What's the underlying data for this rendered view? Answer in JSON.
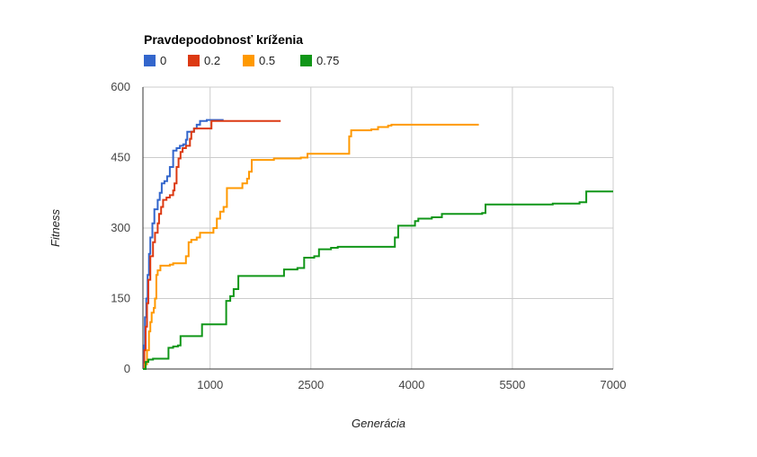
{
  "chart_data": {
    "type": "line",
    "title": "Pravdepodobnosť kríženia",
    "xlabel": "Generácia",
    "ylabel": "Fitness",
    "xlim": [
      0,
      7000
    ],
    "ylim": [
      0,
      600
    ],
    "x_ticks": [
      1000,
      2500,
      4000,
      5500,
      7000
    ],
    "y_ticks": [
      0,
      150,
      300,
      450,
      600
    ],
    "grid": true,
    "legend_position": "top-left",
    "step": true,
    "series": [
      {
        "name": "0",
        "color": "#3366cc",
        "points": [
          [
            0,
            0
          ],
          [
            15,
            50
          ],
          [
            30,
            110
          ],
          [
            50,
            150
          ],
          [
            70,
            200
          ],
          [
            90,
            245
          ],
          [
            110,
            280
          ],
          [
            140,
            310
          ],
          [
            170,
            340
          ],
          [
            220,
            360
          ],
          [
            250,
            375
          ],
          [
            280,
            395
          ],
          [
            320,
            400
          ],
          [
            360,
            410
          ],
          [
            400,
            430
          ],
          [
            450,
            465
          ],
          [
            500,
            470
          ],
          [
            550,
            475
          ],
          [
            600,
            478
          ],
          [
            640,
            488
          ],
          [
            660,
            505
          ],
          [
            760,
            512
          ],
          [
            800,
            520
          ],
          [
            850,
            528
          ],
          [
            950,
            530
          ],
          [
            1100,
            530
          ],
          [
            1200,
            530
          ]
        ]
      },
      {
        "name": "0.2",
        "color": "#dc3912",
        "points": [
          [
            0,
            0
          ],
          [
            20,
            40
          ],
          [
            40,
            90
          ],
          [
            60,
            140
          ],
          [
            80,
            190
          ],
          [
            110,
            240
          ],
          [
            150,
            270
          ],
          [
            180,
            290
          ],
          [
            220,
            310
          ],
          [
            240,
            330
          ],
          [
            270,
            345
          ],
          [
            300,
            360
          ],
          [
            350,
            365
          ],
          [
            400,
            370
          ],
          [
            450,
            380
          ],
          [
            470,
            395
          ],
          [
            500,
            430
          ],
          [
            530,
            448
          ],
          [
            560,
            462
          ],
          [
            590,
            470
          ],
          [
            640,
            475
          ],
          [
            700,
            490
          ],
          [
            720,
            505
          ],
          [
            760,
            512
          ],
          [
            1000,
            512
          ],
          [
            1020,
            528
          ],
          [
            1100,
            528
          ],
          [
            2050,
            528
          ]
        ]
      },
      {
        "name": "0.5",
        "color": "#ff9900",
        "points": [
          [
            0,
            0
          ],
          [
            30,
            10
          ],
          [
            60,
            40
          ],
          [
            90,
            80
          ],
          [
            110,
            100
          ],
          [
            130,
            120
          ],
          [
            160,
            130
          ],
          [
            180,
            150
          ],
          [
            200,
            200
          ],
          [
            220,
            210
          ],
          [
            260,
            220
          ],
          [
            350,
            220
          ],
          [
            400,
            222
          ],
          [
            450,
            225
          ],
          [
            600,
            225
          ],
          [
            640,
            240
          ],
          [
            680,
            270
          ],
          [
            720,
            275
          ],
          [
            800,
            280
          ],
          [
            850,
            290
          ],
          [
            1000,
            290
          ],
          [
            1050,
            300
          ],
          [
            1100,
            320
          ],
          [
            1150,
            335
          ],
          [
            1200,
            345
          ],
          [
            1250,
            385
          ],
          [
            1450,
            385
          ],
          [
            1480,
            395
          ],
          [
            1550,
            405
          ],
          [
            1580,
            420
          ],
          [
            1620,
            445
          ],
          [
            1800,
            445
          ],
          [
            1950,
            448
          ],
          [
            2350,
            450
          ],
          [
            2450,
            458
          ],
          [
            3050,
            458
          ],
          [
            3070,
            495
          ],
          [
            3100,
            508
          ],
          [
            3400,
            510
          ],
          [
            3500,
            515
          ],
          [
            3650,
            518
          ],
          [
            3700,
            520
          ],
          [
            4000,
            520
          ],
          [
            5000,
            520
          ]
        ]
      },
      {
        "name": "0.75",
        "color": "#109618",
        "points": [
          [
            0,
            0
          ],
          [
            40,
            15
          ],
          [
            80,
            20
          ],
          [
            150,
            22
          ],
          [
            300,
            22
          ],
          [
            380,
            45
          ],
          [
            450,
            48
          ],
          [
            520,
            50
          ],
          [
            560,
            70
          ],
          [
            850,
            70
          ],
          [
            880,
            95
          ],
          [
            1200,
            95
          ],
          [
            1240,
            145
          ],
          [
            1300,
            155
          ],
          [
            1350,
            170
          ],
          [
            1420,
            198
          ],
          [
            2050,
            198
          ],
          [
            2100,
            212
          ],
          [
            2300,
            215
          ],
          [
            2400,
            237
          ],
          [
            2550,
            240
          ],
          [
            2620,
            255
          ],
          [
            2800,
            258
          ],
          [
            2900,
            260
          ],
          [
            3700,
            260
          ],
          [
            3750,
            280
          ],
          [
            3800,
            305
          ],
          [
            4000,
            305
          ],
          [
            4050,
            315
          ],
          [
            4100,
            320
          ],
          [
            4300,
            323
          ],
          [
            4450,
            330
          ],
          [
            5050,
            332
          ],
          [
            5100,
            350
          ],
          [
            6000,
            350
          ],
          [
            6100,
            352
          ],
          [
            6500,
            355
          ],
          [
            6600,
            378
          ],
          [
            7000,
            378
          ]
        ]
      }
    ]
  }
}
